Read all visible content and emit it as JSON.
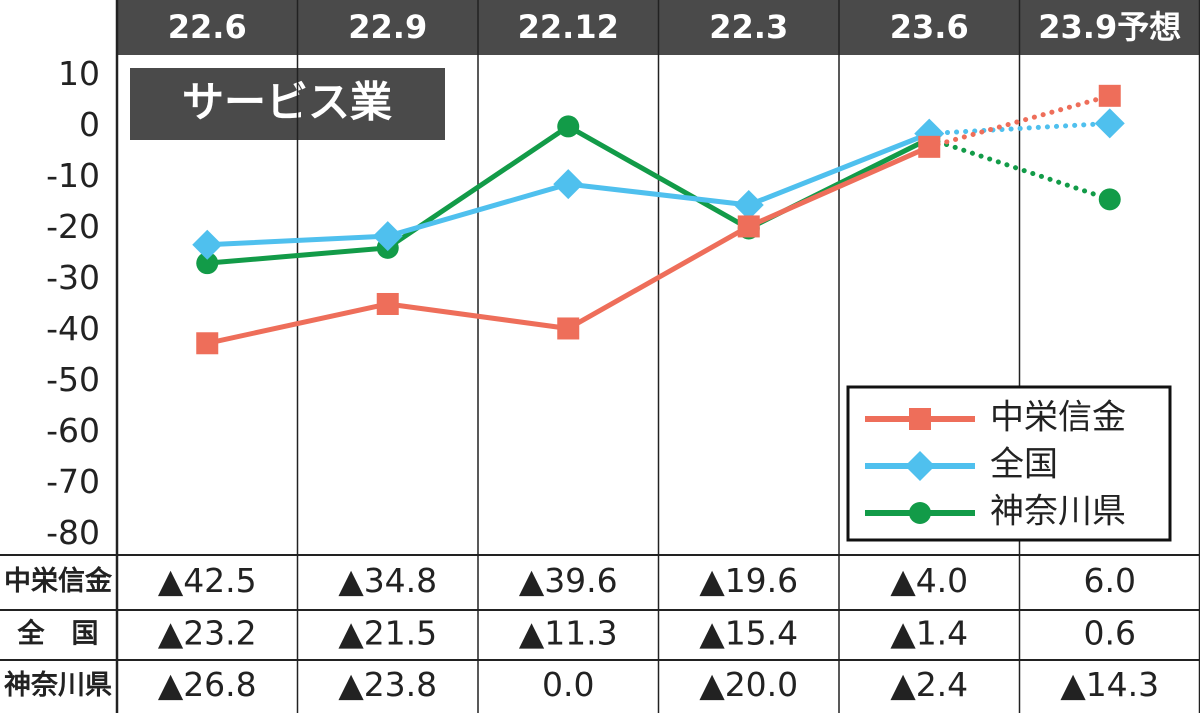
{
  "chart_data": {
    "type": "line",
    "title": "サービス業",
    "categories": [
      "22.6",
      "22.9",
      "22.12",
      "22.3",
      "23.6",
      "23.9予想"
    ],
    "series": [
      {
        "name": "中栄信金",
        "color": "#ee6e5a",
        "marker": "square",
        "values": [
          -42.5,
          -34.8,
          -39.6,
          -19.6,
          -4.0,
          6.0
        ],
        "value_labels": [
          "▲42.5",
          "▲34.8",
          "▲39.6",
          "▲19.6",
          "▲4.0",
          "6.0"
        ]
      },
      {
        "name": "全国",
        "color": "#4fc0ee",
        "marker": "diamond",
        "values": [
          -23.2,
          -21.5,
          -11.3,
          -15.4,
          -1.4,
          0.6
        ],
        "value_labels": [
          "▲23.2",
          "▲21.5",
          "▲11.3",
          "▲15.4",
          "▲1.4",
          "0.6"
        ]
      },
      {
        "name": "神奈川県",
        "color": "#129b48",
        "marker": "circle",
        "values": [
          -26.8,
          -23.8,
          0.0,
          -20.0,
          -2.4,
          -14.3
        ],
        "value_labels": [
          "▲26.8",
          "▲23.8",
          "0.0",
          "▲20.0",
          "▲2.4",
          "▲14.3"
        ]
      }
    ],
    "table_labels": [
      "中栄信金",
      "全　国",
      "神奈川県"
    ],
    "ylim": [
      -84,
      14
    ],
    "yticks": [
      10,
      0,
      -10,
      -20,
      -30,
      -40,
      -50,
      -60,
      -70,
      -80
    ],
    "last_segment_dotted": true,
    "legend": "lower right"
  }
}
